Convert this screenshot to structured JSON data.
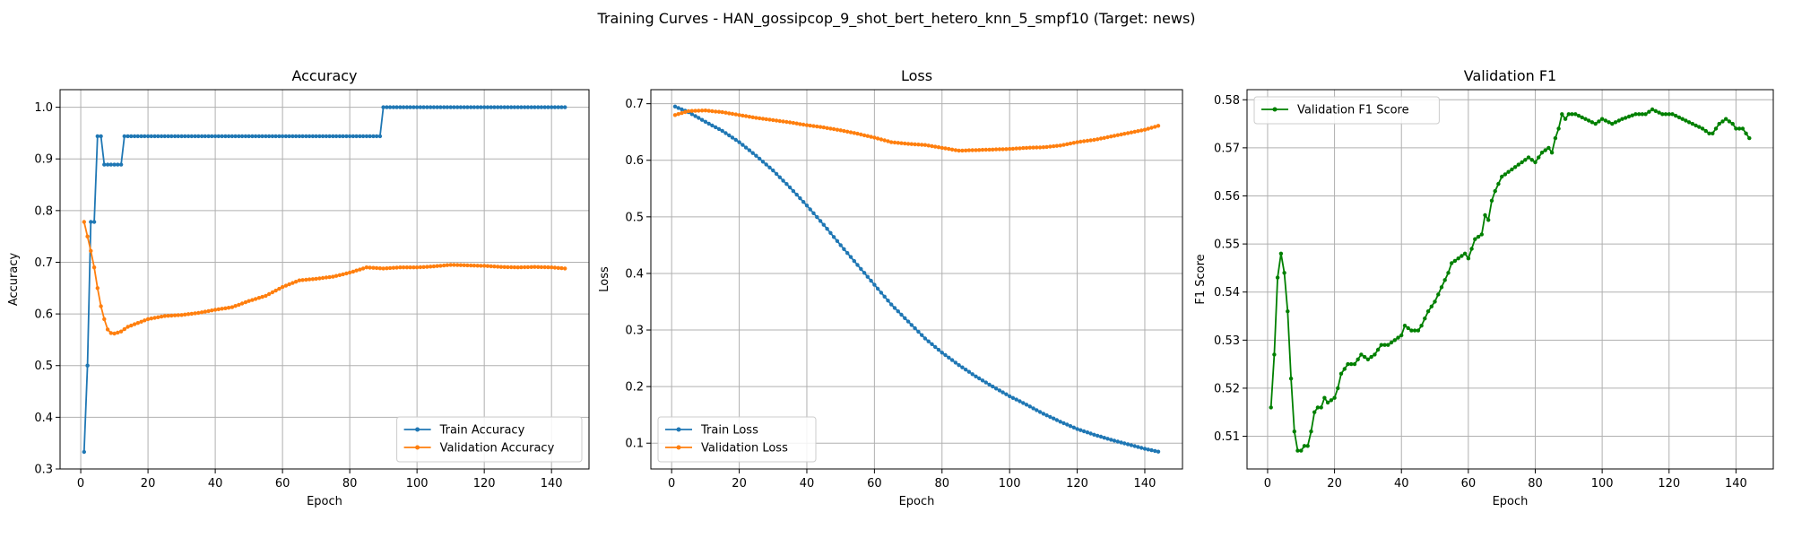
{
  "figure_title": "Training Curves - HAN_gossipcop_9_shot_bert_hetero_knn_5_smpf10 (Target: news)",
  "colors": {
    "train": "#1f77b4",
    "val": "#ff7f0e",
    "f1": "#008000",
    "grid": "#b0b0b0"
  },
  "chart_data": [
    {
      "type": "line",
      "title": "Accuracy",
      "xlabel": "Epoch",
      "ylabel": "Accuracy",
      "xlim": [
        -6.15,
        151.15
      ],
      "ylim": [
        0.3,
        1.034
      ],
      "xticks": [
        0,
        20,
        40,
        60,
        80,
        100,
        120,
        140
      ],
      "yticks": [
        0.3,
        0.4,
        0.5,
        0.6,
        0.7,
        0.8,
        0.9,
        1.0
      ],
      "ytick_labels": [
        "0.3",
        "0.4",
        "0.5",
        "0.6",
        "0.7",
        "0.8",
        "0.9",
        "1.0"
      ],
      "grid": true,
      "legend_position": "lower right",
      "series": [
        {
          "name": "Train Accuracy",
          "color": "#1f77b4",
          "points": [
            [
              1,
              0.333
            ],
            [
              2,
              0.5
            ],
            [
              3,
              0.778
            ],
            [
              4,
              0.778
            ],
            [
              5,
              0.944
            ],
            [
              6,
              0.944
            ],
            [
              7,
              0.889
            ],
            [
              8,
              0.889
            ],
            [
              9,
              0.889
            ],
            [
              10,
              0.889
            ],
            [
              11,
              0.889
            ],
            [
              12,
              0.889
            ],
            [
              13,
              0.944
            ],
            [
              20,
              0.944
            ],
            [
              40,
              0.944
            ],
            [
              60,
              0.944
            ],
            [
              80,
              0.944
            ],
            [
              89,
              0.944
            ],
            [
              90,
              1.0
            ],
            [
              100,
              1.0
            ],
            [
              120,
              1.0
            ],
            [
              144,
              1.0
            ]
          ]
        },
        {
          "name": "Validation Accuracy",
          "color": "#ff7f0e",
          "points": [
            [
              1,
              0.778
            ],
            [
              2,
              0.75
            ],
            [
              3,
              0.722
            ],
            [
              4,
              0.69
            ],
            [
              5,
              0.65
            ],
            [
              6,
              0.615
            ],
            [
              7,
              0.59
            ],
            [
              8,
              0.57
            ],
            [
              9,
              0.563
            ],
            [
              10,
              0.562
            ],
            [
              12,
              0.566
            ],
            [
              14,
              0.575
            ],
            [
              16,
              0.58
            ],
            [
              18,
              0.585
            ],
            [
              20,
              0.59
            ],
            [
              25,
              0.596
            ],
            [
              30,
              0.598
            ],
            [
              35,
              0.602
            ],
            [
              40,
              0.608
            ],
            [
              45,
              0.613
            ],
            [
              50,
              0.625
            ],
            [
              55,
              0.635
            ],
            [
              60,
              0.652
            ],
            [
              65,
              0.665
            ],
            [
              70,
              0.668
            ],
            [
              75,
              0.672
            ],
            [
              80,
              0.68
            ],
            [
              85,
              0.69
            ],
            [
              90,
              0.688
            ],
            [
              95,
              0.69
            ],
            [
              100,
              0.69
            ],
            [
              105,
              0.692
            ],
            [
              110,
              0.695
            ],
            [
              115,
              0.694
            ],
            [
              120,
              0.693
            ],
            [
              125,
              0.691
            ],
            [
              130,
              0.69
            ],
            [
              135,
              0.691
            ],
            [
              140,
              0.69
            ],
            [
              144,
              0.688
            ]
          ]
        }
      ]
    },
    {
      "type": "line",
      "title": "Loss",
      "xlabel": "Epoch",
      "ylabel": "Loss",
      "xlim": [
        -6.15,
        151.15
      ],
      "ylim": [
        0.0544,
        0.7248
      ],
      "xticks": [
        0,
        20,
        40,
        60,
        80,
        100,
        120,
        140
      ],
      "yticks": [
        0.1,
        0.2,
        0.3,
        0.4,
        0.5,
        0.6,
        0.7
      ],
      "ytick_labels": [
        "0.1",
        "0.2",
        "0.3",
        "0.4",
        "0.5",
        "0.6",
        "0.7"
      ],
      "grid": true,
      "legend_position": "lower left",
      "series": [
        {
          "name": "Train Loss",
          "color": "#1f77b4",
          "points": [
            [
              1,
              0.695
            ],
            [
              5,
              0.685
            ],
            [
              10,
              0.668
            ],
            [
              15,
              0.652
            ],
            [
              20,
              0.632
            ],
            [
              25,
              0.608
            ],
            [
              30,
              0.582
            ],
            [
              35,
              0.552
            ],
            [
              40,
              0.52
            ],
            [
              45,
              0.486
            ],
            [
              50,
              0.45
            ],
            [
              55,
              0.415
            ],
            [
              60,
              0.38
            ],
            [
              65,
              0.345
            ],
            [
              70,
              0.315
            ],
            [
              75,
              0.285
            ],
            [
              80,
              0.26
            ],
            [
              85,
              0.238
            ],
            [
              90,
              0.218
            ],
            [
              95,
              0.2
            ],
            [
              100,
              0.183
            ],
            [
              105,
              0.168
            ],
            [
              110,
              0.152
            ],
            [
              115,
              0.138
            ],
            [
              120,
              0.125
            ],
            [
              125,
              0.115
            ],
            [
              130,
              0.106
            ],
            [
              135,
              0.098
            ],
            [
              140,
              0.09
            ],
            [
              144,
              0.085
            ]
          ]
        },
        {
          "name": "Validation Loss",
          "color": "#ff7f0e",
          "points": [
            [
              1,
              0.68
            ],
            [
              5,
              0.687
            ],
            [
              10,
              0.688
            ],
            [
              15,
              0.685
            ],
            [
              20,
              0.68
            ],
            [
              25,
              0.675
            ],
            [
              30,
              0.671
            ],
            [
              35,
              0.667
            ],
            [
              40,
              0.662
            ],
            [
              45,
              0.658
            ],
            [
              50,
              0.653
            ],
            [
              55,
              0.647
            ],
            [
              60,
              0.64
            ],
            [
              65,
              0.632
            ],
            [
              70,
              0.629
            ],
            [
              75,
              0.627
            ],
            [
              80,
              0.622
            ],
            [
              85,
              0.617
            ],
            [
              90,
              0.618
            ],
            [
              95,
              0.619
            ],
            [
              100,
              0.62
            ],
            [
              105,
              0.622
            ],
            [
              110,
              0.623
            ],
            [
              115,
              0.626
            ],
            [
              120,
              0.632
            ],
            [
              125,
              0.636
            ],
            [
              130,
              0.642
            ],
            [
              135,
              0.648
            ],
            [
              140,
              0.654
            ],
            [
              144,
              0.661
            ]
          ]
        }
      ]
    },
    {
      "type": "line",
      "title": "Validation F1",
      "xlabel": "Epoch",
      "ylabel": "F1 Score",
      "xlim": [
        -6.15,
        151.15
      ],
      "ylim": [
        0.5032,
        0.5821
      ],
      "xticks": [
        0,
        20,
        40,
        60,
        80,
        100,
        120,
        140
      ],
      "yticks": [
        0.51,
        0.52,
        0.53,
        0.54,
        0.55,
        0.56,
        0.57,
        0.58
      ],
      "ytick_labels": [
        "0.51",
        "0.52",
        "0.53",
        "0.54",
        "0.55",
        "0.56",
        "0.57",
        "0.58"
      ],
      "grid": true,
      "legend_position": "upper left",
      "series": [
        {
          "name": "Validation F1 Score",
          "color": "#008000",
          "points": [
            [
              1,
              0.516
            ],
            [
              2,
              0.527
            ],
            [
              3,
              0.543
            ],
            [
              4,
              0.548
            ],
            [
              5,
              0.544
            ],
            [
              6,
              0.536
            ],
            [
              7,
              0.522
            ],
            [
              8,
              0.511
            ],
            [
              9,
              0.507
            ],
            [
              10,
              0.507
            ],
            [
              11,
              0.508
            ],
            [
              12,
              0.508
            ],
            [
              13,
              0.511
            ],
            [
              14,
              0.515
            ],
            [
              15,
              0.516
            ],
            [
              16,
              0.516
            ],
            [
              17,
              0.518
            ],
            [
              18,
              0.517
            ],
            [
              20,
              0.518
            ],
            [
              21,
              0.52
            ],
            [
              22,
              0.523
            ],
            [
              24,
              0.525
            ],
            [
              26,
              0.525
            ],
            [
              28,
              0.527
            ],
            [
              30,
              0.526
            ],
            [
              32,
              0.527
            ],
            [
              34,
              0.529
            ],
            [
              36,
              0.529
            ],
            [
              38,
              0.53
            ],
            [
              40,
              0.531
            ],
            [
              41,
              0.533
            ],
            [
              43,
              0.532
            ],
            [
              45,
              0.532
            ],
            [
              46,
              0.533
            ],
            [
              48,
              0.536
            ],
            [
              50,
              0.538
            ],
            [
              52,
              0.541
            ],
            [
              54,
              0.544
            ],
            [
              55,
              0.546
            ],
            [
              57,
              0.547
            ],
            [
              59,
              0.548
            ],
            [
              60,
              0.547
            ],
            [
              62,
              0.551
            ],
            [
              64,
              0.552
            ],
            [
              65,
              0.556
            ],
            [
              66,
              0.555
            ],
            [
              67,
              0.559
            ],
            [
              68,
              0.561
            ],
            [
              70,
              0.564
            ],
            [
              72,
              0.565
            ],
            [
              74,
              0.566
            ],
            [
              76,
              0.567
            ],
            [
              78,
              0.568
            ],
            [
              80,
              0.567
            ],
            [
              82,
              0.569
            ],
            [
              84,
              0.57
            ],
            [
              85,
              0.569
            ],
            [
              86,
              0.572
            ],
            [
              87,
              0.574
            ],
            [
              88,
              0.577
            ],
            [
              89,
              0.576
            ],
            [
              90,
              0.577
            ],
            [
              92,
              0.577
            ],
            [
              95,
              0.576
            ],
            [
              98,
              0.575
            ],
            [
              100,
              0.576
            ],
            [
              103,
              0.575
            ],
            [
              106,
              0.576
            ],
            [
              110,
              0.577
            ],
            [
              113,
              0.577
            ],
            [
              115,
              0.578
            ],
            [
              118,
              0.577
            ],
            [
              121,
              0.577
            ],
            [
              124,
              0.576
            ],
            [
              127,
              0.575
            ],
            [
              130,
              0.574
            ],
            [
              132,
              0.573
            ],
            [
              133,
              0.573
            ],
            [
              135,
              0.575
            ],
            [
              137,
              0.576
            ],
            [
              139,
              0.575
            ],
            [
              140,
              0.574
            ],
            [
              142,
              0.574
            ],
            [
              144,
              0.572
            ]
          ]
        }
      ]
    }
  ]
}
